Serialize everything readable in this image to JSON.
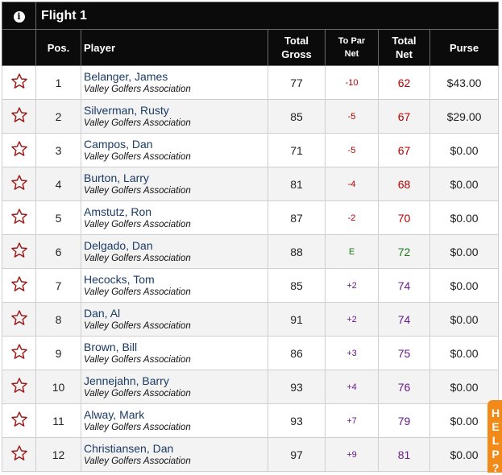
{
  "flight": {
    "title": "Flight 1",
    "info_icon": "info-icon"
  },
  "columns": {
    "pos": "Pos.",
    "player": "Player",
    "total_gross_1": "Total",
    "total_gross_2": "Gross",
    "to_par_1": "To Par",
    "to_par_2": "Net",
    "total_net_1": "Total",
    "total_net_2": "Net",
    "purse": "Purse"
  },
  "colors": {
    "under_par": "#b00000",
    "even_par": "#1a7a1a",
    "over_par": "#6a1a8a",
    "star": "#9b1c1c",
    "help_tab": "#f28a1a"
  },
  "rows": [
    {
      "pos": "1",
      "name": "Belanger, James",
      "assoc": "Valley Golfers Association",
      "gross": "77",
      "to_par": "-10",
      "net": "62",
      "purse": "$43.00",
      "status": "under"
    },
    {
      "pos": "2",
      "name": "Silverman, Rusty",
      "assoc": "Valley Golfers Association",
      "gross": "85",
      "to_par": "-5",
      "net": "67",
      "purse": "$29.00",
      "status": "under"
    },
    {
      "pos": "3",
      "name": "Campos, Dan",
      "assoc": "Valley Golfers Association",
      "gross": "71",
      "to_par": "-5",
      "net": "67",
      "purse": "$0.00",
      "status": "under"
    },
    {
      "pos": "4",
      "name": "Burton, Larry",
      "assoc": "Valley Golfers Association",
      "gross": "81",
      "to_par": "-4",
      "net": "68",
      "purse": "$0.00",
      "status": "under"
    },
    {
      "pos": "5",
      "name": "Amstutz, Ron",
      "assoc": "Valley Golfers Association",
      "gross": "87",
      "to_par": "-2",
      "net": "70",
      "purse": "$0.00",
      "status": "under"
    },
    {
      "pos": "6",
      "name": "Delgado, Dan",
      "assoc": "Valley Golfers Association",
      "gross": "88",
      "to_par": "E",
      "net": "72",
      "purse": "$0.00",
      "status": "even"
    },
    {
      "pos": "7",
      "name": "Hecocks, Tom",
      "assoc": "Valley Golfers Association",
      "gross": "85",
      "to_par": "+2",
      "net": "74",
      "purse": "$0.00",
      "status": "over"
    },
    {
      "pos": "8",
      "name": "Dan, Al",
      "assoc": "Valley Golfers Association",
      "gross": "91",
      "to_par": "+2",
      "net": "74",
      "purse": "$0.00",
      "status": "over"
    },
    {
      "pos": "9",
      "name": "Brown, Bill",
      "assoc": "Valley Golfers Association",
      "gross": "86",
      "to_par": "+3",
      "net": "75",
      "purse": "$0.00",
      "status": "over"
    },
    {
      "pos": "10",
      "name": "Jennejahn, Barry",
      "assoc": "Valley Golfers Association",
      "gross": "93",
      "to_par": "+4",
      "net": "76",
      "purse": "$0.00",
      "status": "over"
    },
    {
      "pos": "11",
      "name": "Alway, Mark",
      "assoc": "Valley Golfers Association",
      "gross": "93",
      "to_par": "+7",
      "net": "79",
      "purse": "$0.00",
      "status": "over"
    },
    {
      "pos": "12",
      "name": "Christiansen, Dan",
      "assoc": "Valley Golfers Association",
      "gross": "97",
      "to_par": "+9",
      "net": "81",
      "purse": "$0.00",
      "status": "over"
    }
  ],
  "row_icon": "star-icon",
  "help_tab": {
    "letters": [
      "H",
      "E",
      "L",
      "P",
      "?"
    ]
  }
}
